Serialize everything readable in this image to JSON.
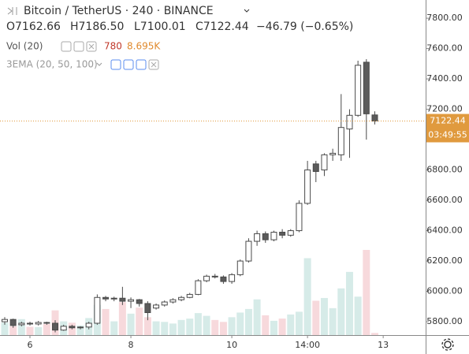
{
  "chart_data": {
    "type": "candlestick",
    "header": {
      "title": "Bitcoin / TetherUS · 240 · BINANCE",
      "ohlc": [
        "O7162.66",
        "H7186.50",
        "L7100.01",
        "C7122.44",
        "−46.79 (−0.65%)"
      ],
      "volume_study": "Vol (20)",
      "volume_value": "780",
      "volume_ma": "8.695K",
      "ema_study": "3EMA (20, 50, 100)"
    },
    "countdown": "03:49:55",
    "categories": [
      null,
      null,
      null,
      "6",
      null,
      null,
      null,
      null,
      null,
      null,
      null,
      null,
      null,
      null,
      null,
      "8",
      null,
      null,
      null,
      null,
      null,
      null,
      null,
      null,
      null,
      null,
      null,
      "10",
      null,
      null,
      null,
      null,
      null,
      null,
      null,
      null,
      "14:00",
      null,
      null,
      null,
      null,
      null,
      null,
      null,
      null,
      "13"
    ],
    "open": [
      5800,
      5815,
      5780,
      5790,
      5785,
      5795,
      5790,
      5745,
      5770,
      5760,
      5765,
      5790,
      5960,
      5950,
      5955,
      5935,
      5945,
      5920,
      5890,
      5910,
      5930,
      5945,
      5960,
      5980,
      6070,
      6100,
      6095,
      6065,
      6110,
      6200,
      6330,
      6380,
      6340,
      6390,
      6370,
      6400,
      6580,
      6840,
      6800,
      6900,
      6900,
      7070,
      7160,
      7510,
      7162.66,
      null
    ],
    "high": [
      5830,
      5820,
      5800,
      5800,
      5805,
      5800,
      5810,
      5780,
      5780,
      5770,
      5800,
      5980,
      5970,
      5965,
      6030,
      5960,
      5950,
      5935,
      5920,
      5940,
      5955,
      5970,
      5990,
      6080,
      6110,
      6115,
      6105,
      6120,
      6210,
      6350,
      6400,
      6395,
      6400,
      6410,
      6410,
      6600,
      6860,
      6860,
      6910,
      6940,
      7300,
      7200,
      7520,
      7530,
      7186.5,
      null
    ],
    "low": [
      5780,
      5760,
      5770,
      5775,
      5775,
      5780,
      5730,
      5740,
      5750,
      5750,
      5750,
      5780,
      5935,
      5935,
      5910,
      5890,
      5900,
      5810,
      5880,
      5900,
      5920,
      5935,
      5955,
      5975,
      6060,
      6085,
      6050,
      6050,
      6100,
      6190,
      6300,
      6320,
      6330,
      6350,
      6360,
      6390,
      6570,
      6720,
      6760,
      6860,
      6860,
      6880,
      7150,
      7000,
      7100.01,
      null
    ],
    "close": [
      5815,
      5775,
      5790,
      5785,
      5795,
      5790,
      5745,
      5770,
      5760,
      5765,
      5790,
      5960,
      5950,
      5955,
      5935,
      5945,
      5920,
      5860,
      5910,
      5930,
      5945,
      5960,
      5980,
      6070,
      6100,
      6095,
      6065,
      6110,
      6200,
      6330,
      6380,
      6340,
      6390,
      6370,
      6400,
      6580,
      6800,
      6790,
      6900,
      6910,
      7080,
      7160,
      7490,
      7170,
      7122.44,
      null
    ],
    "volume": [
      4500,
      3200,
      5800,
      3000,
      2900,
      4000,
      9000,
      5000,
      4500,
      3500,
      6200,
      11000,
      9500,
      5000,
      12000,
      7800,
      10000,
      6500,
      5000,
      4800,
      4200,
      5500,
      6000,
      8000,
      7000,
      5500,
      4800,
      6500,
      8200,
      9500,
      13000,
      7200,
      5200,
      6000,
      7500,
      8500,
      28000,
      12500,
      13500,
      9800,
      17000,
      23000,
      14000,
      31000,
      780,
      null
    ],
    "up_color": "#ffffff",
    "down_color": "#5b5b5b",
    "wick_color": "#4a4a4a",
    "volume_up_color": "#d6ebe8",
    "volume_down_color": "#f7d9dc",
    "last_price_color": "#e09a3e",
    "ylim": [
      5712,
      7920
    ],
    "yticks": [
      {
        "value": 5800,
        "label": "5800.00"
      },
      {
        "value": 6000,
        "label": "6000.00"
      },
      {
        "value": 6200,
        "label": "6200.00"
      },
      {
        "value": 6400,
        "label": "6400.00"
      },
      {
        "value": 6600,
        "label": "6600.00"
      },
      {
        "value": 6800,
        "label": "6800.00"
      },
      {
        "value": 7000,
        "label": "7000.00"
      },
      {
        "value": 7200,
        "label": "7200.00"
      },
      {
        "value": 7400,
        "label": "7400.00"
      },
      {
        "value": 7600,
        "label": "7600.00"
      },
      {
        "value": 7800,
        "label": "7800.00"
      }
    ],
    "y2lim": [
      0,
      122000
    ]
  }
}
